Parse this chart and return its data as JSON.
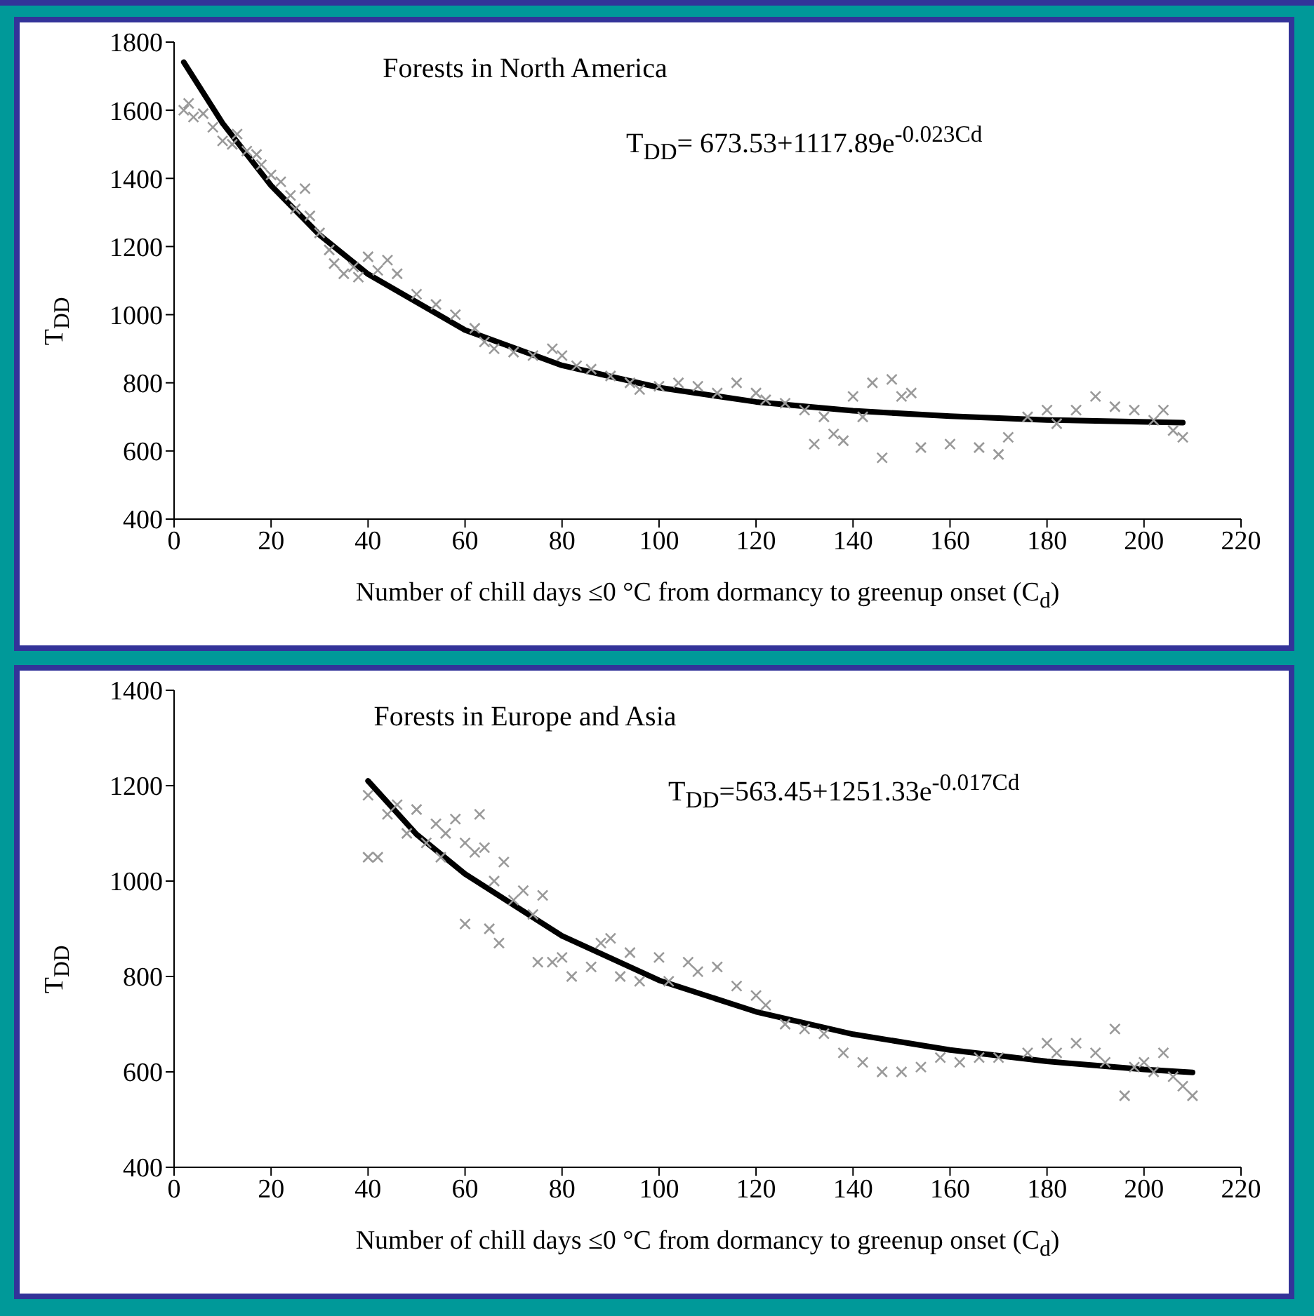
{
  "chart_data": [
    {
      "type": "scatter",
      "title": "Forests in North America",
      "xlabel": "Number of chill days ≤0 °C from dormancy to greenup onset (C$_{d}$)",
      "ylabel": "T$_{DD}$",
      "annotations": [
        "T$_{DD}$= 673.53+1117.89e$^{-0.023Cd}$"
      ],
      "xlim": [
        0,
        220
      ],
      "xticks": [
        0,
        20,
        40,
        60,
        80,
        100,
        120,
        140,
        160,
        180,
        200,
        220
      ],
      "ylim": [
        400,
        1800
      ],
      "yticks": [
        400,
        600,
        800,
        1000,
        1200,
        1400,
        1600,
        1800
      ],
      "series": [
        {
          "type": "scatter",
          "color": "#999999",
          "marker": "cross",
          "x": [
            2,
            3,
            4,
            6,
            8,
            10,
            12,
            13,
            15,
            17,
            18,
            20,
            22,
            24,
            25,
            27,
            28,
            30,
            32,
            33,
            35,
            37,
            38,
            40,
            42,
            44,
            46,
            50,
            54,
            58,
            62,
            64,
            66,
            70,
            74,
            78,
            80,
            83,
            86,
            90,
            94,
            96,
            100,
            104,
            108,
            112,
            116,
            120,
            122,
            126,
            130,
            132,
            134,
            136,
            138,
            140,
            142,
            144,
            146,
            148,
            150,
            152,
            154,
            160,
            166,
            170,
            172,
            176,
            180,
            182,
            186,
            190,
            194,
            198,
            202,
            204,
            206,
            208
          ],
          "values": [
            1600,
            1620,
            1580,
            1590,
            1550,
            1510,
            1500,
            1530,
            1480,
            1470,
            1440,
            1410,
            1390,
            1350,
            1310,
            1370,
            1290,
            1240,
            1190,
            1150,
            1120,
            1140,
            1110,
            1170,
            1130,
            1160,
            1120,
            1060,
            1030,
            1000,
            960,
            920,
            900,
            890,
            880,
            900,
            880,
            850,
            840,
            820,
            800,
            780,
            790,
            800,
            790,
            770,
            800,
            770,
            750,
            740,
            720,
            620,
            700,
            650,
            630,
            760,
            700,
            800,
            580,
            810,
            760,
            770,
            610,
            620,
            610,
            590,
            640,
            700,
            720,
            680,
            720,
            760,
            730,
            720,
            690,
            720,
            660,
            640
          ]
        },
        {
          "type": "line",
          "color": "#000000",
          "marker": "none",
          "line_style": "solid",
          "x": [
            2,
            10,
            20,
            30,
            40,
            60,
            80,
            100,
            120,
            140,
            160,
            180,
            208
          ],
          "values": [
            1741,
            1562,
            1379,
            1234,
            1119,
            955,
            851,
            786,
            744,
            718,
            702,
            691,
            683
          ]
        }
      ]
    },
    {
      "type": "scatter",
      "title": "Forests in Europe and Asia",
      "xlabel": "Number of chill days ≤0 °C from dormancy to greenup onset (C$_{d}$)",
      "ylabel": "T$_{DD}$",
      "annotations": [
        "T$_{DD}$=563.45+1251.33e$^{-0.017Cd}$"
      ],
      "xlim": [
        0,
        220
      ],
      "xticks": [
        0,
        20,
        40,
        60,
        80,
        100,
        120,
        140,
        160,
        180,
        200,
        220
      ],
      "ylim": [
        400,
        1400
      ],
      "yticks": [
        400,
        600,
        800,
        1000,
        1200,
        1400
      ],
      "series": [
        {
          "type": "scatter",
          "color": "#999999",
          "marker": "cross",
          "x": [
            40,
            40,
            42,
            44,
            46,
            48,
            50,
            52,
            54,
            55,
            56,
            58,
            60,
            60,
            62,
            63,
            64,
            65,
            66,
            67,
            68,
            70,
            72,
            74,
            75,
            76,
            78,
            80,
            82,
            86,
            88,
            90,
            92,
            94,
            96,
            100,
            102,
            106,
            108,
            112,
            116,
            120,
            122,
            126,
            130,
            134,
            138,
            142,
            146,
            150,
            154,
            158,
            162,
            166,
            170,
            176,
            180,
            182,
            186,
            190,
            192,
            194,
            196,
            198,
            200,
            202,
            204,
            206,
            208,
            210
          ],
          "values": [
            1180,
            1050,
            1050,
            1140,
            1160,
            1100,
            1150,
            1080,
            1120,
            1050,
            1100,
            1130,
            1080,
            910,
            1060,
            1140,
            1070,
            900,
            1000,
            870,
            1040,
            960,
            980,
            930,
            830,
            970,
            830,
            840,
            800,
            820,
            870,
            880,
            800,
            850,
            790,
            840,
            790,
            830,
            810,
            820,
            780,
            760,
            740,
            700,
            690,
            680,
            640,
            620,
            600,
            600,
            610,
            630,
            620,
            630,
            630,
            640,
            660,
            640,
            660,
            640,
            620,
            690,
            550,
            610,
            620,
            600,
            640,
            590,
            570,
            550
          ]
        },
        {
          "type": "line",
          "color": "#000000",
          "marker": "none",
          "line_style": "solid",
          "x": [
            40,
            50,
            60,
            80,
            100,
            120,
            140,
            160,
            180,
            200,
            210
          ],
          "values": [
            1210,
            1098,
            1015,
            885,
            792,
            726,
            679,
            646,
            622,
            605,
            599
          ]
        }
      ]
    }
  ]
}
